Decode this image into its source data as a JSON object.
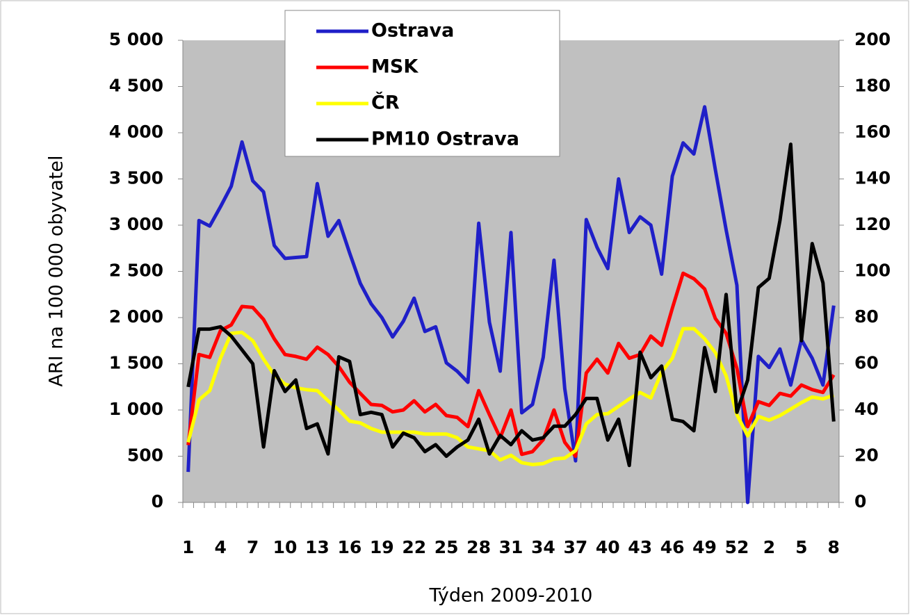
{
  "chart_data": {
    "type": "line",
    "x_label": "Týden 2009-2010",
    "y_label": "ARI na 100 000 obyvatel",
    "categories": [
      "1",
      null,
      null,
      "4",
      null,
      null,
      "7",
      null,
      null,
      "10",
      null,
      null,
      "13",
      null,
      null,
      "16",
      null,
      null,
      "19",
      null,
      null,
      "22",
      null,
      null,
      "25",
      null,
      null,
      "28",
      null,
      null,
      "31",
      null,
      null,
      "34",
      null,
      null,
      "37",
      null,
      null,
      "40",
      null,
      null,
      "43",
      null,
      null,
      "46",
      null,
      null,
      "49",
      null,
      null,
      "52",
      null,
      null,
      "2",
      null,
      null,
      "5",
      null,
      null,
      "8"
    ],
    "series": [
      {
        "name": "Ostrava",
        "color": "#1f1fc8",
        "values": [
          330,
          3050,
          2990,
          3200,
          3420,
          3900,
          3480,
          3360,
          2780,
          2640,
          2650,
          2660,
          3450,
          2880,
          3050,
          2700,
          2370,
          2150,
          2000,
          1790,
          1960,
          2210,
          1850,
          1900,
          1510,
          1420,
          1300,
          3020,
          1950,
          1420,
          2920,
          970,
          1060,
          1570,
          2620,
          1230,
          450,
          3060,
          2760,
          2530,
          3500,
          2920,
          3090,
          3000,
          2470,
          3530,
          3890,
          3770,
          4280,
          3600,
          2950,
          2350,
          0,
          1580,
          1460,
          1660,
          1270,
          1760,
          1560,
          1270,
          2130
        ]
      },
      {
        "name": "MSK",
        "color": "#ff0000",
        "values": [
          620,
          1600,
          1570,
          1860,
          1920,
          2120,
          2110,
          1980,
          1770,
          1600,
          1580,
          1550,
          1680,
          1600,
          1470,
          1300,
          1180,
          1060,
          1050,
          980,
          1000,
          1100,
          980,
          1060,
          940,
          920,
          820,
          1210,
          950,
          700,
          1000,
          520,
          550,
          680,
          1000,
          650,
          500,
          1400,
          1550,
          1400,
          1720,
          1560,
          1600,
          1800,
          1700,
          2100,
          2480,
          2420,
          2310,
          1990,
          1830,
          1450,
          820,
          1090,
          1050,
          1180,
          1150,
          1270,
          1220,
          1190,
          1380
        ]
      },
      {
        "name": "ČR",
        "color": "#ffff00",
        "values": [
          650,
          1110,
          1210,
          1560,
          1830,
          1840,
          1750,
          1550,
          1380,
          1280,
          1240,
          1220,
          1210,
          1100,
          1000,
          880,
          860,
          800,
          760,
          760,
          760,
          760,
          740,
          740,
          740,
          700,
          600,
          580,
          560,
          460,
          510,
          430,
          410,
          420,
          470,
          480,
          560,
          850,
          950,
          960,
          1040,
          1120,
          1190,
          1130,
          1410,
          1560,
          1880,
          1880,
          1770,
          1620,
          1370,
          950,
          720,
          930,
          890,
          940,
          1010,
          1080,
          1140,
          1120,
          1160
        ]
      },
      {
        "name": "PM10 Ostrava",
        "color": "#000000",
        "axis": "y2",
        "values": [
          50,
          75,
          75,
          76,
          72,
          66,
          60,
          24,
          57,
          48,
          53,
          32,
          34,
          21,
          63,
          61,
          38,
          39,
          38,
          24,
          30,
          28,
          22,
          25,
          20,
          24,
          27,
          36,
          21,
          29,
          25,
          31,
          27,
          28,
          33,
          33,
          38,
          45,
          45,
          27,
          36,
          16,
          65,
          54,
          59,
          36,
          35,
          31,
          67,
          48,
          90,
          39,
          53,
          93,
          97,
          122,
          155,
          70,
          112,
          95,
          35
        ]
      }
    ],
    "ylim": [
      0,
      5000
    ],
    "yticks": [
      0,
      500,
      {
        "value": 1000,
        "label": "1 000"
      },
      {
        "value": 1500,
        "label": "1 500"
      },
      {
        "value": 2000,
        "label": "2 000"
      },
      {
        "value": 2500,
        "label": "2 500"
      },
      {
        "value": 3000,
        "label": "3 000"
      },
      {
        "value": 3500,
        "label": "3 500"
      },
      {
        "value": 4000,
        "label": "4 000"
      },
      {
        "value": 4500,
        "label": "4 500"
      },
      {
        "value": 5000,
        "label": "5 000"
      }
    ],
    "y2lim": [
      0,
      200
    ],
    "y2ticks": [
      0,
      20,
      40,
      60,
      80,
      100,
      120,
      140,
      160,
      180,
      200
    ],
    "plot_background": "#c0c0c0",
    "legend": "top"
  }
}
